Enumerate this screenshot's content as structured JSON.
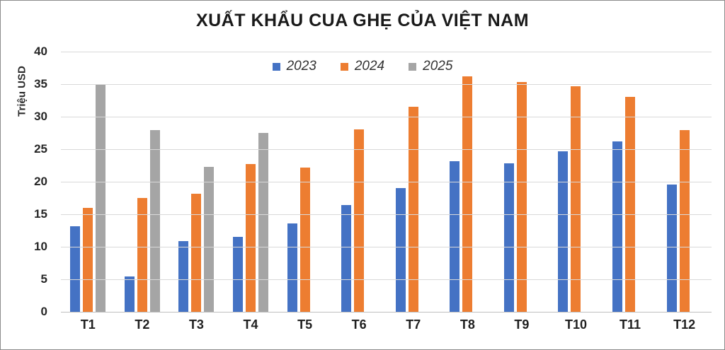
{
  "chart_data": {
    "type": "bar",
    "title": "XUẤT KHẨU CUA GHẸ CỦA VIỆT NAM",
    "ylabel": "Triệu USD",
    "xlabel": "",
    "ylim": [
      0,
      40
    ],
    "yticks": [
      0,
      5,
      10,
      15,
      20,
      25,
      30,
      35,
      40
    ],
    "grid": true,
    "legend_position": "top-center",
    "grid_color": "#d9d9d9",
    "axis_text_color": "#262626",
    "categories": [
      "T1",
      "T2",
      "T3",
      "T4",
      "T5",
      "T6",
      "T7",
      "T8",
      "T9",
      "T10",
      "T11",
      "T12"
    ],
    "series": [
      {
        "name": "2023",
        "color": "#4472C4",
        "values": [
          13.1,
          5.4,
          10.9,
          11.5,
          13.6,
          16.4,
          19.0,
          23.2,
          22.8,
          24.7,
          26.2,
          19.6
        ]
      },
      {
        "name": "2024",
        "color": "#ED7D31",
        "values": [
          16.0,
          17.5,
          18.2,
          22.7,
          22.2,
          28.0,
          31.5,
          36.2,
          35.3,
          34.7,
          33.0,
          27.9
        ]
      },
      {
        "name": "2025",
        "color": "#A5A5A5",
        "values": [
          35.0,
          27.9,
          22.3,
          27.5,
          null,
          null,
          null,
          null,
          null,
          null,
          null,
          null
        ]
      }
    ]
  }
}
